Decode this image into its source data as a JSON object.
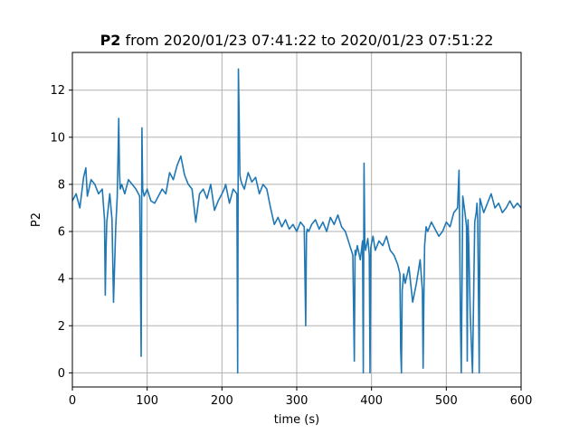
{
  "chart_data": {
    "type": "line",
    "title_bold": "P2",
    "title_rest": " from 2020/01/23 07:41:22 to 2020/01/23 07:51:22",
    "xlabel": "time (s)",
    "ylabel": "P2",
    "xlim": [
      0,
      600
    ],
    "ylim": [
      -0.6,
      13.6
    ],
    "xticks": [
      0,
      100,
      200,
      300,
      400,
      500,
      600
    ],
    "xtick_labels": [
      "0",
      "100",
      "200",
      "300",
      "400",
      "500",
      "600"
    ],
    "yticks": [
      0,
      2,
      4,
      6,
      8,
      10,
      12
    ],
    "ytick_labels": [
      "0",
      "2",
      "4",
      "6",
      "8",
      "10",
      "12"
    ],
    "grid": true,
    "series": [
      {
        "color": "#1f77b4",
        "x": [
          0,
          5,
          10,
          15,
          18,
          20,
          25,
          30,
          35,
          40,
          43,
          44,
          45,
          46,
          48,
          50,
          53,
          55,
          58,
          60,
          62,
          63,
          64,
          66,
          70,
          75,
          80,
          85,
          90,
          92,
          93,
          94,
          96,
          100,
          105,
          110,
          115,
          120,
          125,
          130,
          135,
          140,
          145,
          150,
          155,
          160,
          165,
          170,
          175,
          180,
          185,
          190,
          195,
          200,
          203,
          205,
          210,
          215,
          220,
          221,
          222,
          223,
          224,
          225,
          227,
          230,
          235,
          240,
          245,
          250,
          255,
          260,
          265,
          270,
          275,
          280,
          285,
          290,
          295,
          300,
          305,
          310,
          312,
          313,
          314,
          316,
          320,
          325,
          330,
          335,
          340,
          345,
          350,
          355,
          360,
          365,
          370,
          375,
          377,
          378,
          379,
          381,
          385,
          388,
          389,
          390,
          391,
          392,
          395,
          397,
          398,
          399,
          400,
          402,
          405,
          410,
          415,
          420,
          425,
          430,
          435,
          438,
          439,
          440,
          441,
          443,
          445,
          450,
          455,
          460,
          465,
          468,
          469,
          470,
          471,
          473,
          475,
          480,
          485,
          490,
          495,
          500,
          505,
          510,
          515,
          517,
          518,
          519,
          520,
          522,
          525,
          527,
          528,
          529,
          530,
          532,
          535,
          538,
          540,
          541,
          542,
          544,
          545,
          550,
          555,
          560,
          565,
          570,
          575,
          580,
          585,
          590,
          595,
          600
        ],
        "values": [
          7.3,
          7.6,
          7.0,
          8.3,
          8.7,
          7.5,
          8.2,
          8.0,
          7.6,
          7.8,
          6.5,
          3.3,
          5.2,
          6.4,
          7.0,
          7.6,
          6.5,
          3.0,
          6.2,
          7.5,
          10.8,
          8.5,
          7.8,
          8.0,
          7.6,
          8.2,
          8.0,
          7.8,
          7.5,
          0.7,
          10.4,
          7.8,
          7.5,
          7.8,
          7.3,
          7.2,
          7.5,
          7.8,
          7.6,
          8.5,
          8.2,
          8.8,
          9.2,
          8.4,
          8.0,
          7.8,
          6.4,
          7.6,
          7.8,
          7.4,
          8.0,
          6.9,
          7.3,
          7.6,
          7.8,
          8.0,
          7.2,
          7.8,
          7.6,
          0.0,
          12.9,
          10.8,
          8.4,
          8.2,
          8.0,
          7.8,
          8.5,
          8.1,
          8.3,
          7.6,
          8.0,
          7.8,
          7.0,
          6.3,
          6.6,
          6.2,
          6.5,
          6.1,
          6.3,
          6.0,
          6.4,
          6.2,
          2.0,
          5.9,
          6.1,
          6.0,
          6.3,
          6.5,
          6.1,
          6.4,
          6.0,
          6.6,
          6.3,
          6.7,
          6.2,
          6.0,
          5.5,
          5.0,
          0.5,
          5.2,
          5.0,
          5.4,
          4.8,
          5.6,
          0.0,
          8.9,
          5.5,
          5.2,
          5.7,
          5.0,
          0.0,
          5.3,
          5.5,
          5.8,
          5.2,
          5.6,
          5.4,
          5.8,
          5.2,
          5.0,
          4.6,
          4.2,
          1.0,
          0.0,
          3.5,
          4.2,
          3.8,
          4.5,
          3.0,
          3.8,
          4.8,
          3.5,
          0.2,
          3.2,
          5.4,
          6.2,
          6.0,
          6.4,
          6.1,
          5.8,
          6.0,
          6.4,
          6.2,
          6.8,
          7.0,
          8.6,
          5.5,
          2.0,
          0.0,
          7.5,
          6.8,
          6.2,
          0.5,
          6.5,
          5.5,
          2.5,
          0.0,
          6.4,
          6.8,
          7.2,
          6.5,
          0.0,
          7.4,
          6.8,
          7.2,
          7.6,
          7.0,
          7.2,
          6.8,
          7.0,
          7.3,
          7.0,
          7.2,
          7.0
        ]
      }
    ]
  }
}
